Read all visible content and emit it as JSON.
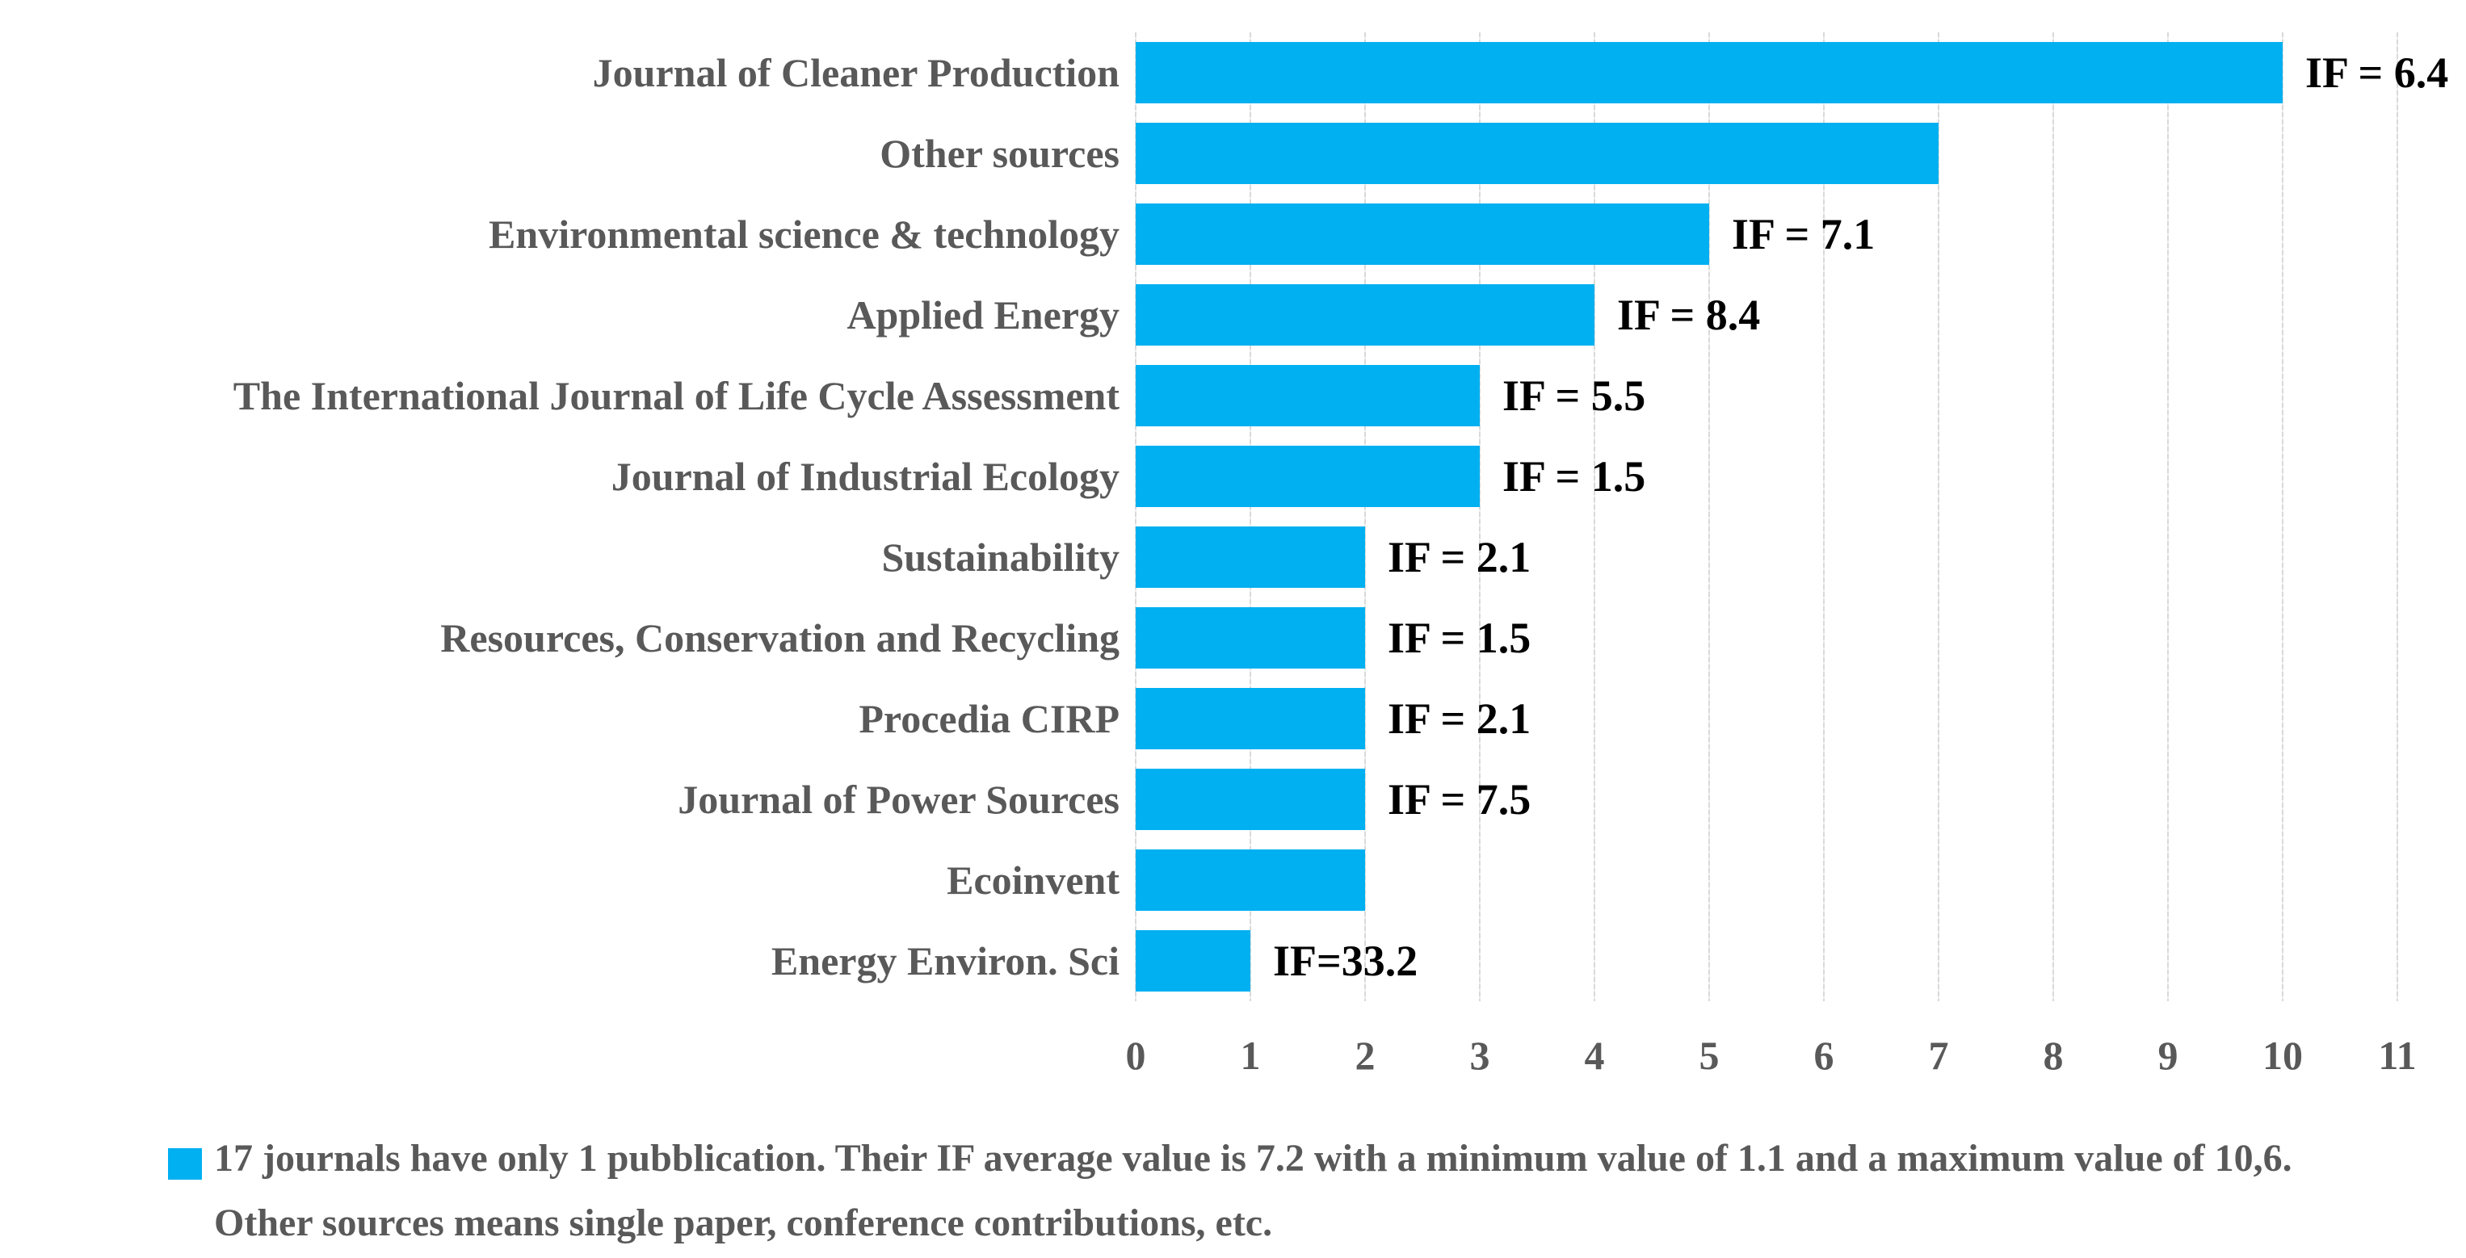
{
  "chart_data": {
    "type": "bar",
    "orientation": "horizontal",
    "title": "",
    "xlabel": "",
    "ylabel": "",
    "categories": [
      "Journal of Cleaner Production",
      "Other sources",
      "Environmental science & technology",
      "Applied Energy",
      "The International Journal of Life Cycle Assessment",
      "Journal of Industrial Ecology",
      "Sustainability",
      "Resources, Conservation and Recycling",
      "Procedia CIRP",
      "Journal of Power Sources",
      "Ecoinvent",
      "Energy Environ. Sci"
    ],
    "values": [
      10,
      7,
      5,
      4,
      3,
      3,
      2,
      2,
      2,
      2,
      2,
      1
    ],
    "bar_labels": [
      "IF = 6.4",
      "",
      "IF = 7.1",
      "IF = 8.4",
      "IF = 5.5",
      "IF = 1.5",
      "IF = 2.1",
      "IF = 1.5",
      "IF = 2.1",
      "IF = 7.5",
      "",
      "IF=33.2"
    ],
    "x_ticks": [
      0,
      1,
      2,
      3,
      4,
      5,
      6,
      7,
      8,
      9,
      10,
      11
    ],
    "xlim": [
      0,
      11
    ],
    "grid": true,
    "legend_position": "bottom-left",
    "colors": {
      "bar": "#00b0f0",
      "category_label": "#595959",
      "bar_label": "#000000",
      "tick_label": "#595959",
      "gridline": "#d9d9d9",
      "legend_text": "#595959",
      "legend_marker": "#00b0f0"
    },
    "legend": {
      "text": "17 journals have only 1 pubblication. Their IF average value is 7.2 with a minimum value of 1.1 and a maximum value of 10,6. Other sources means single paper, conference contributions, etc."
    }
  }
}
